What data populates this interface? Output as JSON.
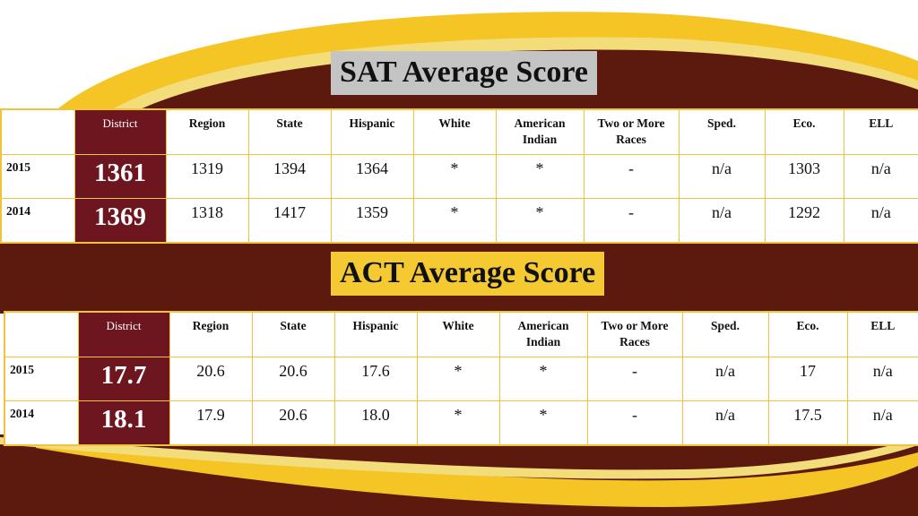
{
  "sat": {
    "title": "SAT Average Score",
    "headers": [
      "",
      "District",
      "Region",
      "State",
      "Hispanic",
      "White",
      "American Indian",
      "Two or More Races",
      "Sped.",
      "Eco.",
      "ELL"
    ],
    "rows": [
      [
        "2015",
        "1361",
        "1319",
        "1394",
        "1364",
        "*",
        "*",
        "-",
        "n/a",
        "1303",
        "n/a"
      ],
      [
        "2014",
        "1369",
        "1318",
        "1417",
        "1359",
        "*",
        "*",
        "-",
        "n/a",
        "1292",
        "n/a"
      ]
    ]
  },
  "act": {
    "title": "ACT Average Score",
    "headers": [
      "",
      "District",
      "Region",
      "State",
      "Hispanic",
      "White",
      "American Indian",
      "Two or More Races",
      "Sped.",
      "Eco.",
      "ELL"
    ],
    "rows": [
      [
        "2015",
        "17.7",
        "20.6",
        "20.6",
        "17.6",
        "*",
        "*",
        "-",
        "n/a",
        "17",
        "n/a"
      ],
      [
        "2014",
        "18.1",
        "17.9",
        "20.6",
        "18.0",
        "*",
        "*",
        "-",
        "n/a",
        "17.5",
        "n/a"
      ]
    ]
  },
  "colors": {
    "maroon": "#5c1a0f",
    "gold": "#f5c526",
    "district_cell": "#6e1620",
    "sat_title_bg": "#c4c4c4",
    "act_title_bg": "#f4c932"
  }
}
